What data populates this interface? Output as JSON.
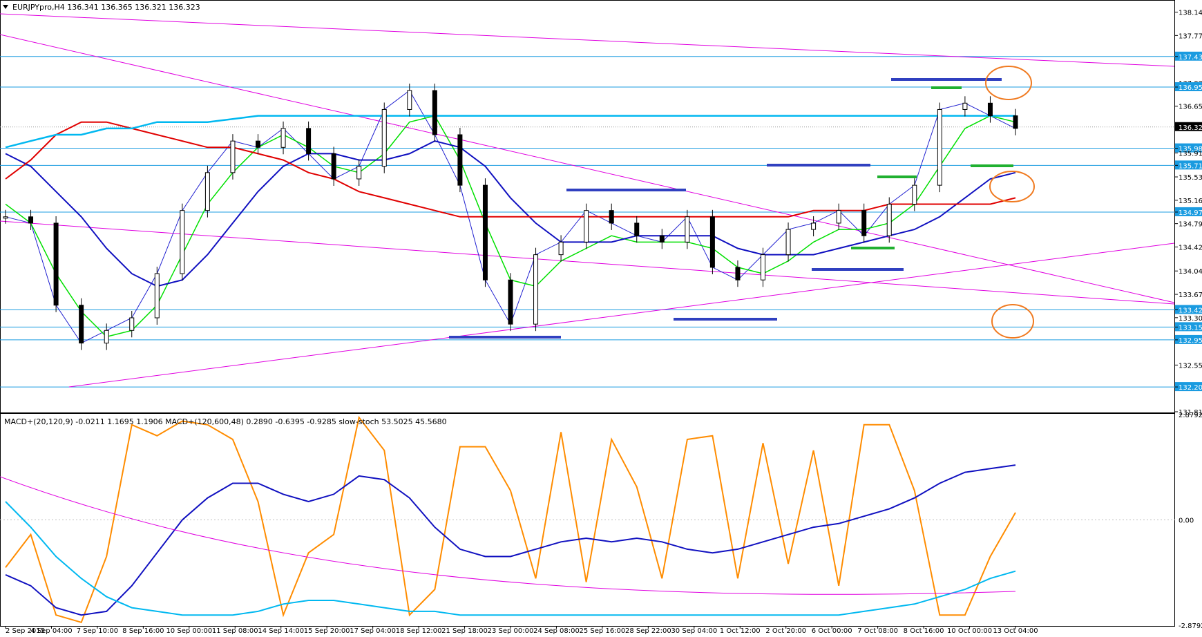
{
  "header": {
    "symbol": "EURJPYpro,H4",
    "ohlc": "136.341 136.365 136.321 136.323"
  },
  "colors": {
    "price_hlines": "#1a9be0",
    "ma_fast": "#00e000",
    "ma_mid": "#1010c0",
    "ma_slow": "#e00000",
    "ma_long": "#00b8f0",
    "bollinger": "#2020d0",
    "envelope": "#e00000",
    "trendlines": "#e000e0",
    "level_blue": "#3040c0",
    "level_green": "#20b030",
    "circles": "#f07a20",
    "stoch_main": "#ff8c00",
    "stoch_signal": "#e00000",
    "macd_fast": "#1010c0",
    "macd_slow": "#00b8f0",
    "macd_long_signal": "#e000e0"
  },
  "chart_data": [
    {
      "type": "line",
      "title": "EURJPYpro,H4",
      "y_axis_labels": [
        "138.142",
        "137.772",
        "137.439",
        "137.022",
        "136.955",
        "136.652",
        "136.323",
        "135.986",
        "135.912",
        "135.715",
        "135.532",
        "135.162",
        "134.975",
        "134.792",
        "134.422",
        "134.042",
        "133.672",
        "133.427",
        "133.302",
        "133.154",
        "132.951",
        "132.552",
        "132.205",
        "131.812"
      ],
      "ylim": [
        131.812,
        138.312
      ],
      "current_price": 136.323,
      "horizontal_levels": [
        137.439,
        136.955,
        135.986,
        135.715,
        134.975,
        133.427,
        133.154,
        132.951,
        132.205
      ],
      "x_axis_labels": [
        "2 Sep 2015",
        "4 Sep 04:00",
        "7 Sep 10:00",
        "8 Sep 16:00",
        "10 Sep 00:00",
        "11 Sep 08:00",
        "14 Sep 14:00",
        "15 Sep 20:00",
        "17 Sep 04:00",
        "18 Sep 12:00",
        "21 Sep 18:00",
        "23 Sep 00:00",
        "24 Sep 08:00",
        "25 Sep 16:00",
        "28 Sep 22:00",
        "30 Sep 04:00",
        "1 Oct 12:00",
        "2 Oct 20:00",
        "6 Oct 00:00",
        "7 Oct 08:00",
        "8 Oct 16:00",
        "10 Oct 00:00",
        "13 Oct 04:00"
      ],
      "series": [
        {
          "values": [
            134.9,
            134.8,
            133.5,
            132.9,
            133.1,
            133.3,
            134.0,
            135.0,
            135.6,
            136.1,
            136.0,
            136.3,
            135.9,
            135.5,
            135.7,
            136.6,
            136.9,
            136.2,
            135.4,
            133.9,
            133.2,
            134.3,
            134.5,
            135.0,
            134.8,
            134.6,
            134.5,
            134.9,
            134.1,
            133.9,
            134.3,
            134.7,
            134.8,
            135.0,
            134.6,
            135.1,
            135.4,
            136.6,
            136.7,
            136.5,
            136.3
          ]
        },
        {
          "values": [
            135.1,
            134.8,
            134.0,
            133.4,
            133.0,
            133.1,
            133.5,
            134.3,
            135.1,
            135.6,
            136.0,
            136.2,
            136.0,
            135.7,
            135.6,
            135.9,
            136.4,
            136.5,
            135.8,
            134.8,
            133.9,
            133.8,
            134.2,
            134.4,
            134.6,
            134.5,
            134.5,
            134.5,
            134.4,
            134.1,
            134.0,
            134.2,
            134.5,
            134.7,
            134.7,
            134.8,
            135.1,
            135.7,
            136.3,
            136.5,
            136.4
          ]
        },
        {
          "values": [
            135.9,
            135.7,
            135.3,
            134.9,
            134.4,
            134.0,
            133.8,
            133.9,
            134.3,
            134.8,
            135.3,
            135.7,
            135.9,
            135.9,
            135.8,
            135.8,
            135.9,
            136.1,
            136.0,
            135.7,
            135.2,
            134.8,
            134.5,
            134.5,
            134.5,
            134.6,
            134.6,
            134.6,
            134.6,
            134.4,
            134.3,
            134.3,
            134.3,
            134.4,
            134.5,
            134.6,
            134.7,
            134.9,
            135.2,
            135.5,
            135.6
          ]
        },
        {
          "values": [
            135.5,
            135.8,
            136.2,
            136.4,
            136.4,
            136.3,
            136.2,
            136.1,
            136.0,
            136.0,
            135.9,
            135.8,
            135.6,
            135.5,
            135.3,
            135.2,
            135.1,
            135.0,
            134.9,
            134.9,
            134.9,
            134.9,
            134.9,
            134.9,
            134.9,
            134.9,
            134.9,
            134.9,
            134.9,
            134.9,
            134.9,
            134.9,
            135.0,
            135.0,
            135.0,
            135.1,
            135.1,
            135.1,
            135.1,
            135.1,
            135.2
          ]
        },
        {
          "values": [
            136.0,
            136.1,
            136.2,
            136.2,
            136.3,
            136.3,
            136.4,
            136.4,
            136.4,
            136.45,
            136.5,
            136.5,
            136.5,
            136.5,
            136.5,
            136.5,
            136.5,
            136.5,
            136.5,
            136.5,
            136.5,
            136.5,
            136.5,
            136.5,
            136.5,
            136.5,
            136.5,
            136.5,
            136.5,
            136.5,
            136.5,
            136.5,
            136.5,
            136.5,
            136.5,
            136.5,
            136.5,
            136.5,
            136.5,
            136.5,
            136.5
          ]
        }
      ]
    },
    {
      "type": "line",
      "title": "MACD+(20,120,9) -0.0211 1.1695 1.1906   MACD+(120,600,48) 0.2890 -0.6395 -0.9285   slow-stoch 53.5025 45.5680",
      "y_axis_labels": [
        "2.8792",
        "0.00",
        "-2.8792"
      ],
      "ylim": [
        -2.8792,
        2.8792
      ],
      "series": [
        {
          "values": [
            -1.3,
            -0.4,
            -2.6,
            -2.8,
            -1.0,
            2.6,
            2.3,
            2.7,
            2.6,
            2.2,
            0.5,
            -2.6,
            -0.9,
            -0.4,
            2.8,
            1.9,
            -2.6,
            -1.9,
            2.0,
            2.0,
            0.8,
            -1.6,
            2.4,
            -1.7,
            2.2,
            0.9,
            -1.6,
            2.2,
            2.3,
            -1.6,
            2.1,
            -1.2,
            1.9,
            -1.8,
            2.6,
            2.6,
            0.8,
            -2.6,
            -2.6,
            -1.0,
            0.2
          ]
        },
        {
          "values": [
            -1.5,
            -1.8,
            -2.4,
            -2.6,
            -2.5,
            -1.8,
            -0.9,
            0.0,
            0.6,
            1.0,
            1.0,
            0.7,
            0.5,
            0.7,
            1.2,
            1.1,
            0.6,
            -0.2,
            -0.8,
            -1.0,
            -1.0,
            -0.8,
            -0.6,
            -0.5,
            -0.6,
            -0.5,
            -0.6,
            -0.8,
            -0.9,
            -0.8,
            -0.6,
            -0.4,
            -0.2,
            -0.1,
            0.1,
            0.3,
            0.6,
            1.0,
            1.3,
            1.4,
            1.5
          ]
        },
        {
          "values": [
            0.5,
            -0.2,
            -1.0,
            -1.6,
            -2.1,
            -2.4,
            -2.5,
            -2.6,
            -2.6,
            -2.6,
            -2.5,
            -2.3,
            -2.2,
            -2.2,
            -2.3,
            -2.4,
            -2.5,
            -2.5,
            -2.6,
            -2.6,
            -2.6,
            -2.6,
            -2.6,
            -2.6,
            -2.6,
            -2.6,
            -2.6,
            -2.6,
            -2.6,
            -2.6,
            -2.6,
            -2.6,
            -2.6,
            -2.6,
            -2.5,
            -2.4,
            -2.3,
            -2.1,
            -1.9,
            -1.6,
            -1.4
          ]
        }
      ]
    }
  ]
}
